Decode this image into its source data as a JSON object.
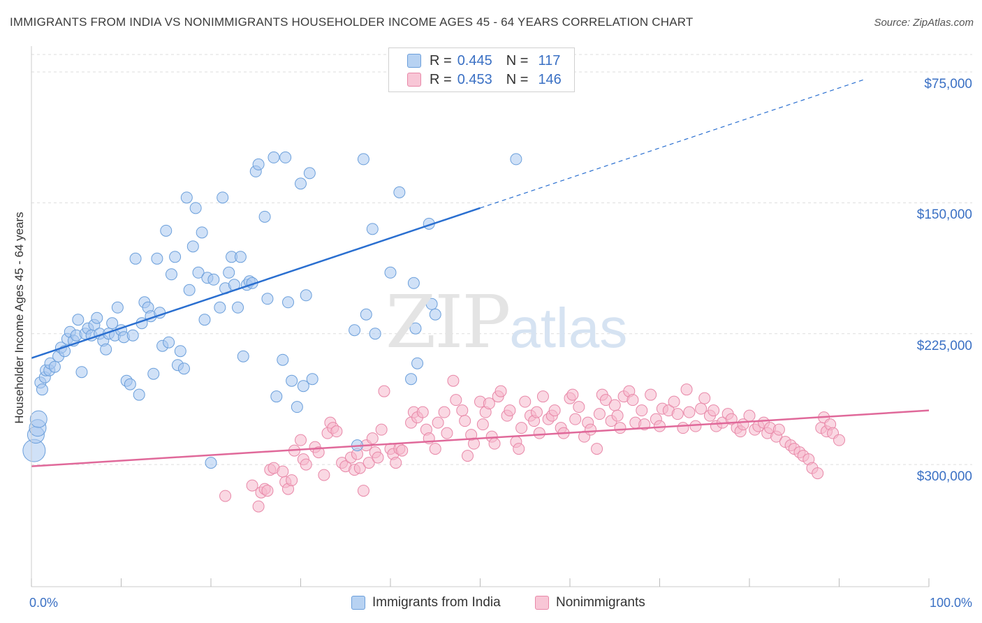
{
  "header": {
    "title": "IMMIGRANTS FROM INDIA VS NONIMMIGRANTS HOUSEHOLDER INCOME AGES 45 - 64 YEARS CORRELATION CHART",
    "source": "Source: ZipAtlas.com"
  },
  "watermark": {
    "zip": "ZIP",
    "atlas": "atlas"
  },
  "legend": {
    "rows": [
      {
        "r_label": "R =",
        "r_value": "0.445",
        "n_label": "N =",
        "n_value": "117"
      },
      {
        "r_label": "R =",
        "r_value": "0.453",
        "n_label": "N =",
        "n_value": "146"
      }
    ]
  },
  "bottom_legend": {
    "series1": "Immigrants from India",
    "series2": "Nonimmigrants"
  },
  "axes": {
    "ylabel": "Householder Income Ages 45 - 64 years",
    "x_min_label": "0.0%",
    "x_max_label": "100.0%",
    "y_ticks": [
      "$300,000",
      "$225,000",
      "$150,000",
      "$75,000"
    ]
  },
  "colors": {
    "blue_fill": "#a9c9f0",
    "blue_stroke": "#6b9fdb",
    "blue_line": "#2a6fd0",
    "pink_fill": "#f6b8cc",
    "pink_stroke": "#e888a8",
    "pink_line": "#e0699a",
    "accent_text": "#3a70c4"
  },
  "chart_data": {
    "type": "scatter",
    "xlim": [
      0,
      100
    ],
    "ylim": [
      5000,
      310000
    ],
    "y_ticks": [
      75000,
      150000,
      225000,
      300000
    ],
    "grid": "horizontal dashed",
    "legend_position": "top-center",
    "series": [
      {
        "name": "Immigrants from India",
        "r": 0.445,
        "n": 117,
        "trend": {
          "x0": 0,
          "y0": 136000,
          "x1": 50,
          "y1": 222000,
          "extended_to_x": 93,
          "extended_y": 296000
        },
        "points": [
          [
            0.3,
            83000
          ],
          [
            0.5,
            92000
          ],
          [
            0.7,
            96000
          ],
          [
            0.8,
            101000
          ],
          [
            1,
            122000
          ],
          [
            1.2,
            118000
          ],
          [
            1.5,
            125000
          ],
          [
            1.6,
            129000
          ],
          [
            2,
            129000
          ],
          [
            2.1,
            133000
          ],
          [
            2.6,
            131000
          ],
          [
            3,
            137000
          ],
          [
            3.3,
            142000
          ],
          [
            3.7,
            140000
          ],
          [
            4,
            147000
          ],
          [
            4.3,
            151000
          ],
          [
            4.7,
            146000
          ],
          [
            5,
            149000
          ],
          [
            5.2,
            158000
          ],
          [
            5.6,
            128000
          ],
          [
            6,
            150000
          ],
          [
            6.3,
            153000
          ],
          [
            6.7,
            149000
          ],
          [
            7,
            155000
          ],
          [
            7.3,
            159000
          ],
          [
            7.6,
            150000
          ],
          [
            8,
            146000
          ],
          [
            8.3,
            141000
          ],
          [
            8.6,
            150000
          ],
          [
            9,
            156000
          ],
          [
            9.3,
            149000
          ],
          [
            9.6,
            165000
          ],
          [
            10,
            152000
          ],
          [
            10.3,
            148000
          ],
          [
            10.6,
            123000
          ],
          [
            11,
            121000
          ],
          [
            11.3,
            149000
          ],
          [
            11.6,
            193000
          ],
          [
            12,
            115000
          ],
          [
            12.3,
            156000
          ],
          [
            12.6,
            168000
          ],
          [
            13,
            165000
          ],
          [
            13.3,
            160000
          ],
          [
            13.6,
            127000
          ],
          [
            14,
            193000
          ],
          [
            14.3,
            162000
          ],
          [
            14.6,
            143000
          ],
          [
            15,
            209000
          ],
          [
            15.3,
            145000
          ],
          [
            15.6,
            184000
          ],
          [
            16,
            194000
          ],
          [
            16.3,
            132000
          ],
          [
            16.6,
            140000
          ],
          [
            17,
            130000
          ],
          [
            17.3,
            228000
          ],
          [
            17.6,
            175000
          ],
          [
            18,
            200000
          ],
          [
            18.3,
            222000
          ],
          [
            18.6,
            185000
          ],
          [
            19,
            208000
          ],
          [
            19.3,
            158000
          ],
          [
            19.6,
            182000
          ],
          [
            20,
            76000
          ],
          [
            20.3,
            181000
          ],
          [
            21,
            165000
          ],
          [
            21.3,
            228000
          ],
          [
            21.6,
            176000
          ],
          [
            22,
            185000
          ],
          [
            22.3,
            194000
          ],
          [
            22.6,
            178000
          ],
          [
            23,
            165000
          ],
          [
            23.3,
            194000
          ],
          [
            23.6,
            137000
          ],
          [
            24,
            178000
          ],
          [
            24.3,
            180000
          ],
          [
            24.6,
            179000
          ],
          [
            25,
            243000
          ],
          [
            25.3,
            247000
          ],
          [
            26,
            217000
          ],
          [
            26.3,
            170000
          ],
          [
            27,
            251000
          ],
          [
            27.3,
            114000
          ],
          [
            28,
            135000
          ],
          [
            28.3,
            251000
          ],
          [
            28.6,
            168000
          ],
          [
            29,
            123000
          ],
          [
            29.6,
            108000
          ],
          [
            30,
            236000
          ],
          [
            30.3,
            120000
          ],
          [
            30.6,
            172000
          ],
          [
            31,
            242000
          ],
          [
            31.3,
            124000
          ],
          [
            36,
            152000
          ],
          [
            36.3,
            86000
          ],
          [
            37,
            250000
          ],
          [
            37.3,
            161000
          ],
          [
            38,
            210000
          ],
          [
            38.3,
            150000
          ],
          [
            40,
            185000
          ],
          [
            41,
            231000
          ],
          [
            42.3,
            124000
          ],
          [
            42.6,
            179000
          ],
          [
            42.8,
            153000
          ],
          [
            43,
            133000
          ],
          [
            44.3,
            213000
          ],
          [
            44.6,
            167000
          ],
          [
            45,
            161000
          ],
          [
            54,
            250000
          ]
        ]
      },
      {
        "name": "Nonimmigrants",
        "r": 0.453,
        "n": 146,
        "trend": {
          "x0": 0,
          "y0": 74000,
          "x1": 100,
          "y1": 106000
        },
        "points": [
          [
            21.6,
            57000
          ],
          [
            24.6,
            63000
          ],
          [
            25.3,
            51000
          ],
          [
            25.6,
            59000
          ],
          [
            26,
            61000
          ],
          [
            26.3,
            60000
          ],
          [
            26.6,
            72000
          ],
          [
            27,
            73000
          ],
          [
            28,
            71000
          ],
          [
            28.3,
            65000
          ],
          [
            28.6,
            61000
          ],
          [
            29,
            66000
          ],
          [
            29.3,
            83000
          ],
          [
            30,
            89000
          ],
          [
            30.3,
            78000
          ],
          [
            30.6,
            75000
          ],
          [
            31.6,
            85000
          ],
          [
            32,
            82000
          ],
          [
            32.6,
            69000
          ],
          [
            33,
            93000
          ],
          [
            33.3,
            99000
          ],
          [
            33.6,
            96000
          ],
          [
            34,
            94000
          ],
          [
            34.6,
            76000
          ],
          [
            35,
            74000
          ],
          [
            35.6,
            79000
          ],
          [
            36,
            72000
          ],
          [
            36.3,
            81000
          ],
          [
            36.6,
            73000
          ],
          [
            37,
            60000
          ],
          [
            37.3,
            86000
          ],
          [
            37.6,
            76000
          ],
          [
            38,
            90000
          ],
          [
            38.3,
            82000
          ],
          [
            38.6,
            79000
          ],
          [
            39,
            95000
          ],
          [
            39.3,
            117000
          ],
          [
            40,
            84000
          ],
          [
            40.3,
            81000
          ],
          [
            40.6,
            76000
          ],
          [
            41,
            84000
          ],
          [
            41.3,
            83000
          ],
          [
            42.3,
            99000
          ],
          [
            42.6,
            105000
          ],
          [
            43,
            102000
          ],
          [
            43.6,
            105000
          ],
          [
            44,
            95000
          ],
          [
            44.3,
            90000
          ],
          [
            45,
            84000
          ],
          [
            45.3,
            99000
          ],
          [
            46,
            105000
          ],
          [
            46.3,
            93000
          ],
          [
            47,
            123000
          ],
          [
            47.3,
            112000
          ],
          [
            48,
            106000
          ],
          [
            48.3,
            100000
          ],
          [
            48.6,
            80000
          ],
          [
            49,
            92000
          ],
          [
            49.3,
            87000
          ],
          [
            50,
            111000
          ],
          [
            50.3,
            98000
          ],
          [
            50.6,
            105000
          ],
          [
            51,
            110000
          ],
          [
            51.3,
            91000
          ],
          [
            51.6,
            87000
          ],
          [
            52,
            114000
          ],
          [
            52.3,
            117000
          ],
          [
            53,
            103000
          ],
          [
            53.3,
            106000
          ],
          [
            54,
            88000
          ],
          [
            54.3,
            84000
          ],
          [
            54.6,
            96000
          ],
          [
            55,
            111000
          ],
          [
            55.6,
            103000
          ],
          [
            56,
            100000
          ],
          [
            56.3,
            105000
          ],
          [
            56.6,
            93000
          ],
          [
            57,
            114000
          ],
          [
            57.6,
            101000
          ],
          [
            58,
            103000
          ],
          [
            58.3,
            106000
          ],
          [
            59,
            96000
          ],
          [
            59.3,
            93000
          ],
          [
            60,
            113000
          ],
          [
            60.3,
            115000
          ],
          [
            60.6,
            101000
          ],
          [
            61,
            108000
          ],
          [
            61.6,
            91000
          ],
          [
            62,
            99000
          ],
          [
            62.3,
            95000
          ],
          [
            63,
            84000
          ],
          [
            63.3,
            104000
          ],
          [
            63.6,
            115000
          ],
          [
            64,
            112000
          ],
          [
            64.6,
            100000
          ],
          [
            65,
            109000
          ],
          [
            65.3,
            103000
          ],
          [
            65.6,
            96000
          ],
          [
            66,
            114000
          ],
          [
            66.6,
            117000
          ],
          [
            67,
            112000
          ],
          [
            67.3,
            99000
          ],
          [
            68,
            106000
          ],
          [
            68.3,
            98000
          ],
          [
            69,
            115000
          ],
          [
            69.6,
            101000
          ],
          [
            70,
            97000
          ],
          [
            70.3,
            107000
          ],
          [
            71,
            106000
          ],
          [
            71.6,
            111000
          ],
          [
            72,
            104000
          ],
          [
            72.6,
            96000
          ],
          [
            73,
            118000
          ],
          [
            73.3,
            105000
          ],
          [
            74,
            97000
          ],
          [
            74.6,
            107000
          ],
          [
            75,
            113000
          ],
          [
            75.6,
            103000
          ],
          [
            76,
            106000
          ],
          [
            76.3,
            97000
          ],
          [
            77,
            99000
          ],
          [
            77.6,
            104000
          ],
          [
            78,
            101000
          ],
          [
            78.6,
            96000
          ],
          [
            79,
            94000
          ],
          [
            79.3,
            98000
          ],
          [
            80,
            103000
          ],
          [
            80.6,
            95000
          ],
          [
            81,
            97000
          ],
          [
            81.6,
            99000
          ],
          [
            82,
            93000
          ],
          [
            82.3,
            96000
          ],
          [
            83,
            91000
          ],
          [
            83.3,
            95000
          ],
          [
            84,
            88000
          ],
          [
            84.6,
            86000
          ],
          [
            85,
            84000
          ],
          [
            85.6,
            82000
          ],
          [
            86,
            80000
          ],
          [
            86.6,
            78000
          ],
          [
            87,
            73000
          ],
          [
            87.6,
            70000
          ],
          [
            88,
            96000
          ],
          [
            88.3,
            102000
          ],
          [
            88.6,
            94000
          ],
          [
            89,
            98000
          ],
          [
            89.3,
            93000
          ],
          [
            90,
            89000
          ]
        ]
      }
    ]
  }
}
